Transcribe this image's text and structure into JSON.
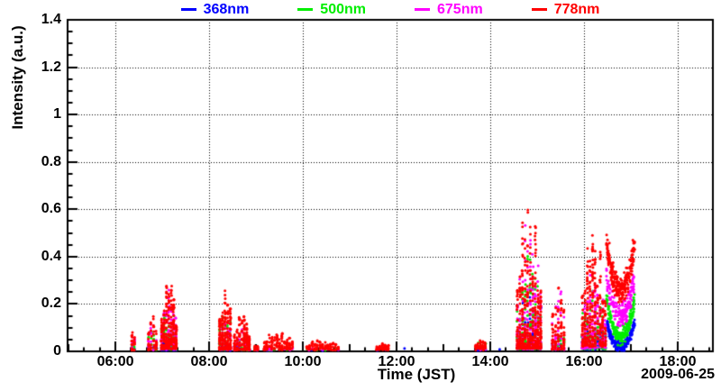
{
  "page": {
    "background": "#ffffff"
  },
  "chart_data": {
    "type": "scatter",
    "ylabel": "Intensity (a.u.)",
    "xlabel": "Time (JST)",
    "date_label": "2009-06-25",
    "background": "#ffffff",
    "frame": {
      "color": "#000000",
      "line_width": 2
    },
    "grid": {
      "on": true,
      "style": "dotted",
      "color": "#000000",
      "dash": [
        1,
        2
      ]
    },
    "marker_radius": 1.5,
    "x_axis": {
      "min": 4.98,
      "max": 18.75,
      "units": "hours JST",
      "ticks": [
        {
          "t": 6,
          "label": "06:00"
        },
        {
          "t": 8,
          "label": "08:00"
        },
        {
          "t": 10,
          "label": "10:00"
        },
        {
          "t": 12,
          "label": "12:00"
        },
        {
          "t": 14,
          "label": "14:00"
        },
        {
          "t": 16,
          "label": "16:00"
        },
        {
          "t": 18,
          "label": "18:00"
        }
      ],
      "hour_tick": true,
      "minor_step_hours": 0.3333333
    },
    "y_axis": {
      "min": 0,
      "max": 1.4,
      "ticks": [
        {
          "v": 0,
          "label": "0"
        },
        {
          "v": 0.2,
          "label": "0.2"
        },
        {
          "v": 0.4,
          "label": "0.4"
        },
        {
          "v": 0.6,
          "label": "0.6"
        },
        {
          "v": 0.8,
          "label": "0.8"
        },
        {
          "v": 1,
          "label": "1"
        },
        {
          "v": 1.2,
          "label": "1.2"
        },
        {
          "v": 1.4,
          "label": "1.4"
        }
      ],
      "minor_step": 0.05
    },
    "series": [
      {
        "key": "368",
        "label": "368nm",
        "color": "#0000ff"
      },
      {
        "key": "500",
        "label": "500nm",
        "color": "#00ee00"
      },
      {
        "key": "675",
        "label": "675nm",
        "color": "#ff00ff"
      },
      {
        "key": "778",
        "label": "778nm",
        "color": "#ff0000"
      }
    ],
    "legend_position": "top-center",
    "clusters": [
      {
        "t0": 6.33,
        "t1": 6.43,
        "mode": "spike",
        "series": {
          "368": {
            "n": 5,
            "lo": 0.004,
            "hi": 0.022,
            "g": 1.2
          },
          "500": {
            "n": 8,
            "lo": 0.005,
            "hi": 0.05,
            "g": 1.2
          },
          "675": {
            "n": 10,
            "lo": 0.005,
            "hi": 0.105,
            "g": 1.3
          },
          "778": {
            "n": 22,
            "lo": 0.005,
            "hi": 0.125,
            "g": 1.4
          }
        }
      },
      {
        "t0": 6.68,
        "t1": 6.9,
        "mode": "spike",
        "series": {
          "368": {
            "n": 8,
            "lo": 0.004,
            "hi": 0.03,
            "g": 1.2
          },
          "500": {
            "n": 14,
            "lo": 0.005,
            "hi": 0.12,
            "g": 1.4
          },
          "675": {
            "n": 18,
            "lo": 0.005,
            "hi": 0.17,
            "g": 1.5
          },
          "778": {
            "n": 42,
            "lo": 0.005,
            "hi": 0.19,
            "g": 1.5
          }
        }
      },
      {
        "t0": 6.96,
        "t1": 7.32,
        "mode": "spike",
        "series": {
          "368": {
            "n": 32,
            "lo": 0.005,
            "hi": 0.08,
            "g": 1.4
          },
          "500": {
            "n": 65,
            "lo": 0.008,
            "hi": 0.21,
            "g": 1.6
          },
          "675": {
            "n": 85,
            "lo": 0.008,
            "hi": 0.27,
            "g": 1.6
          },
          "778": {
            "n": 250,
            "lo": 0.01,
            "hi": 0.3,
            "g": 1.6
          }
        }
      },
      {
        "t0": 8.2,
        "t1": 8.48,
        "mode": "spike",
        "series": {
          "368": {
            "n": 22,
            "lo": 0.004,
            "hi": 0.05,
            "g": 1.5
          },
          "500": {
            "n": 45,
            "lo": 0.006,
            "hi": 0.2,
            "g": 1.8
          },
          "675": {
            "n": 45,
            "lo": 0.006,
            "hi": 0.18,
            "g": 1.8
          },
          "778": {
            "n": 190,
            "lo": 0.008,
            "hi": 0.27,
            "g": 1.7
          }
        }
      },
      {
        "t0": 8.52,
        "t1": 8.88,
        "mode": "spike",
        "series": {
          "368": {
            "n": 14,
            "lo": 0.004,
            "hi": 0.035,
            "g": 1.3
          },
          "500": {
            "n": 26,
            "lo": 0.005,
            "hi": 0.09,
            "g": 1.5
          },
          "675": {
            "n": 26,
            "lo": 0.005,
            "hi": 0.1,
            "g": 1.5
          },
          "778": {
            "n": 150,
            "lo": 0.006,
            "hi": 0.16,
            "g": 1.4
          }
        }
      },
      {
        "t0": 8.95,
        "t1": 9.06,
        "mode": "spike",
        "series": {
          "368": {
            "n": 3,
            "lo": 0.004,
            "hi": 0.012,
            "g": 1
          },
          "500": {
            "n": 4,
            "lo": 0.004,
            "hi": 0.02,
            "g": 1
          },
          "675": {
            "n": 4,
            "lo": 0.004,
            "hi": 0.02,
            "g": 1
          },
          "778": {
            "n": 18,
            "lo": 0.005,
            "hi": 0.035,
            "g": 1.1
          }
        }
      },
      {
        "t0": 9.15,
        "t1": 9.8,
        "mode": "spike",
        "series": {
          "368": {
            "n": 7,
            "lo": 0.003,
            "hi": 0.015,
            "g": 1
          },
          "500": {
            "n": 9,
            "lo": 0.004,
            "hi": 0.028,
            "g": 1
          },
          "675": {
            "n": 9,
            "lo": 0.004,
            "hi": 0.03,
            "g": 1
          },
          "778": {
            "n": 130,
            "lo": 0.006,
            "hi": 0.085,
            "g": 1.1
          }
        }
      },
      {
        "t0": 10.06,
        "t1": 10.78,
        "mode": "spike",
        "series": {
          "368": {
            "n": 4,
            "lo": 0.003,
            "hi": 0.01,
            "g": 1
          },
          "500": {
            "n": 5,
            "lo": 0.004,
            "hi": 0.018,
            "g": 1
          },
          "675": {
            "n": 5,
            "lo": 0.004,
            "hi": 0.018,
            "g": 1
          },
          "778": {
            "n": 105,
            "lo": 0.005,
            "hi": 0.05,
            "g": 1
          }
        }
      },
      {
        "t0": 11.55,
        "t1": 11.85,
        "mode": "spike",
        "series": {
          "368": {
            "n": 2,
            "lo": 0.003,
            "hi": 0.01,
            "g": 1
          },
          "778": {
            "n": 55,
            "lo": 0.005,
            "hi": 0.035,
            "g": 1
          }
        }
      },
      {
        "t0": 13.66,
        "t1": 13.92,
        "mode": "spike",
        "series": {
          "368": {
            "n": 5,
            "lo": 0.003,
            "hi": 0.015,
            "g": 1
          },
          "500": {
            "n": 11,
            "lo": 0.005,
            "hi": 0.05,
            "g": 1.2
          },
          "675": {
            "n": 7,
            "lo": 0.004,
            "hi": 0.03,
            "g": 1.1
          },
          "778": {
            "n": 42,
            "lo": 0.006,
            "hi": 0.06,
            "g": 1.2
          }
        }
      },
      {
        "t0": 14.55,
        "t1": 15.1,
        "mode": "spike",
        "series": {
          "368": {
            "n": 85,
            "lo": 0.01,
            "hi": 0.33,
            "g": 2.6
          },
          "500": {
            "n": 150,
            "lo": 0.01,
            "hi": 0.46,
            "g": 2.3
          },
          "675": {
            "n": 190,
            "lo": 0.01,
            "hi": 0.6,
            "g": 2.3
          },
          "778": {
            "n": 400,
            "lo": 0.012,
            "hi": 0.64,
            "g": 2.2
          }
        }
      },
      {
        "t0": 15.3,
        "t1": 15.6,
        "mode": "spike",
        "series": {
          "368": {
            "n": 14,
            "lo": 0.005,
            "hi": 0.05,
            "g": 1.4
          },
          "500": {
            "n": 22,
            "lo": 0.006,
            "hi": 0.1,
            "g": 1.5
          },
          "675": {
            "n": 45,
            "lo": 0.008,
            "hi": 0.33,
            "g": 2.4
          },
          "778": {
            "n": 100,
            "lo": 0.008,
            "hi": 0.31,
            "g": 2
          }
        }
      },
      {
        "t0": 15.94,
        "t1": 16.48,
        "mode": "spike",
        "series": {
          "368": {
            "n": 65,
            "lo": 0.008,
            "hi": 0.13,
            "g": 1.7
          },
          "500": {
            "n": 110,
            "lo": 0.01,
            "hi": 0.3,
            "g": 1.7
          },
          "675": {
            "n": 140,
            "lo": 0.012,
            "hi": 0.36,
            "g": 1.6
          },
          "778": {
            "n": 300,
            "lo": 0.02,
            "hi": 0.52,
            "g": 1.6
          }
        }
      },
      {
        "t0": 16.48,
        "t1": 17.08,
        "mode": "uband",
        "series": {
          "368": {
            "n": 190,
            "lo": 0.02,
            "hi": 0.12,
            "sp": 0.022
          },
          "500": {
            "n": 190,
            "lo": 0.06,
            "hi": 0.22,
            "sp": 0.035
          },
          "675": {
            "n": 175,
            "lo": 0.15,
            "hi": 0.31,
            "sp": 0.05
          },
          "778": {
            "n": 250,
            "lo": 0.26,
            "hi": 0.45,
            "sp": 0.055
          }
        }
      }
    ],
    "points": [
      {
        "series": "368",
        "t": 12.17,
        "v": 0.012
      },
      {
        "series": "368",
        "t": 14.2,
        "v": 0.009
      }
    ]
  }
}
